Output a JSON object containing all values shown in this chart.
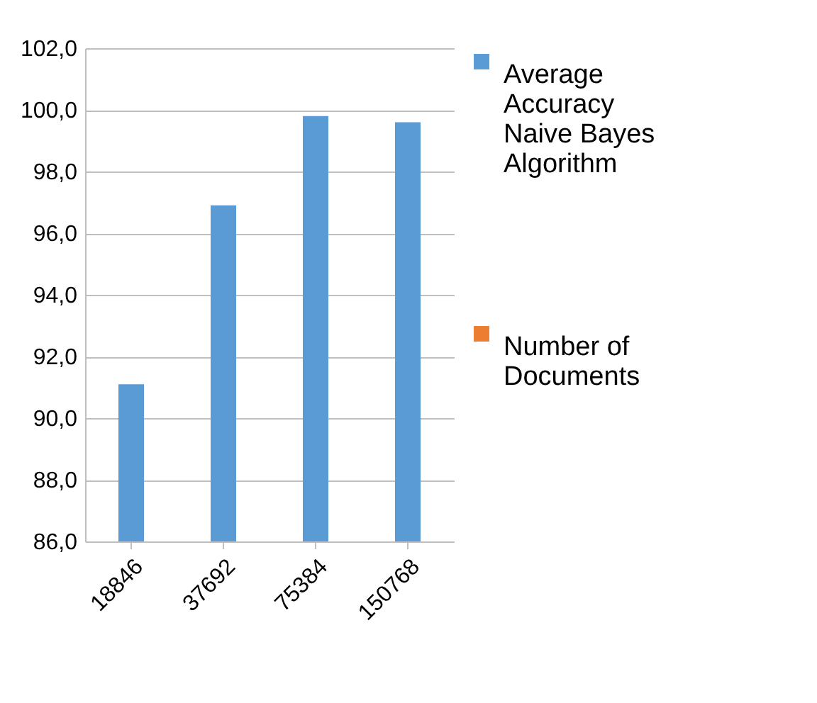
{
  "chart_data": {
    "type": "bar",
    "categories": [
      "18846",
      "37692",
      "75384",
      "150768"
    ],
    "series": [
      {
        "name": "Average Accuracy Naive Bayes Algorithm",
        "color": "#5b9bd5",
        "values": [
          91.1,
          96.9,
          99.8,
          99.6
        ]
      },
      {
        "name": "Number of Documents",
        "color": "#ed7d31",
        "values": [
          null,
          null,
          null,
          null
        ]
      }
    ],
    "ylim": [
      86,
      102
    ],
    "yticks": [
      {
        "value": 86,
        "label": "86,0"
      },
      {
        "value": 88,
        "label": "88,0"
      },
      {
        "value": 90,
        "label": "90,0"
      },
      {
        "value": 92,
        "label": "92,0"
      },
      {
        "value": 94,
        "label": "94,0"
      },
      {
        "value": 96,
        "label": "96,0"
      },
      {
        "value": 98,
        "label": "98,0"
      },
      {
        "value": 100,
        "label": "100,0"
      },
      {
        "value": 102,
        "label": "102,0"
      }
    ],
    "grid": "y",
    "legend": "right"
  }
}
